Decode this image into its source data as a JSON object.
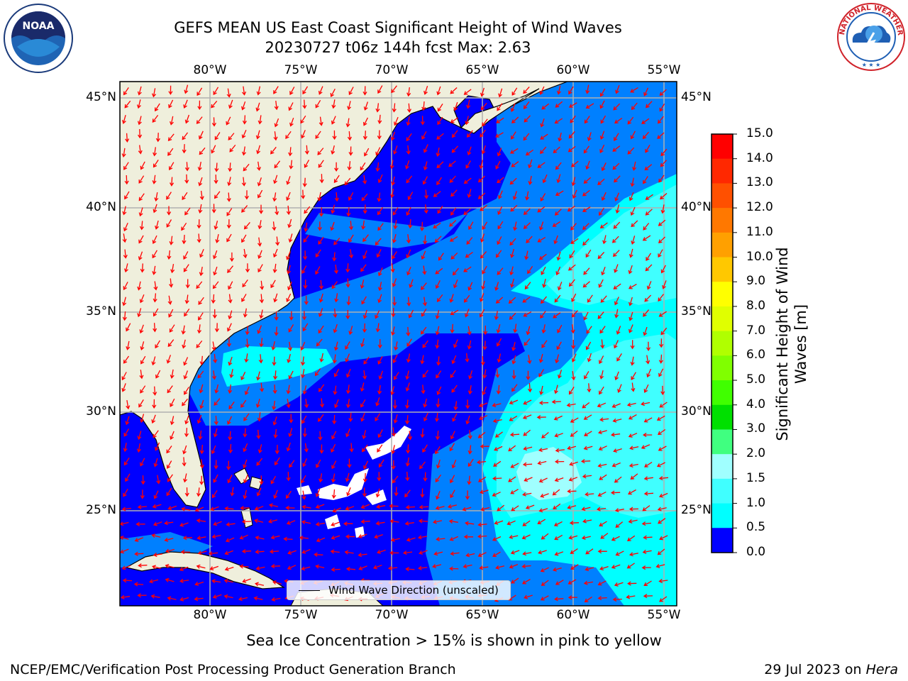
{
  "title": {
    "line1": "GEFS MEAN US East Coast Significant Height of Wind Waves",
    "line2": "20230727 t06z 144h fcst   Max: 2.63"
  },
  "map": {
    "lon_ticks": [
      "80°W",
      "75°W",
      "70°W",
      "65°W",
      "60°W",
      "55°W"
    ],
    "lat_ticks": [
      "45°N",
      "40°N",
      "35°N",
      "30°N",
      "25°N"
    ],
    "legend_label": "Wind Wave Direction (unscaled)",
    "colors": {
      "land": "#efefdc",
      "ocean_0_0.5": "#0000ff",
      "ocean_0.5_1.0": "#0080ff",
      "ocean_1.0_1.5": "#00ffff",
      "ocean_1.5_2.0": "#40ffff",
      "ocean_2.0_3.0": "#a0ffff",
      "arrow": "#ff0000",
      "grid": "#b0b0b0"
    }
  },
  "colorbar": {
    "label": "Significant Height of Wind Waves [m]",
    "ticks": [
      "15.0",
      "14.0",
      "13.0",
      "12.0",
      "11.0",
      "10.0",
      "9.0",
      "8.0",
      "7.0",
      "6.0",
      "5.0",
      "4.0",
      "3.0",
      "2.0",
      "1.5",
      "1.0",
      "0.5",
      "0.0"
    ],
    "colors": [
      "#ff0000",
      "#ff2800",
      "#ff5000",
      "#ff7800",
      "#ffa000",
      "#ffc800",
      "#ffff00",
      "#e0ff00",
      "#b0ff00",
      "#80ff00",
      "#40ff00",
      "#00e000",
      "#40ff80",
      "#a0ffff",
      "#40ffff",
      "#00ffff",
      "#0080ff",
      "#0000ff"
    ]
  },
  "note": "Sea Ice Concentration > 15% is shown in pink to yellow",
  "footer": {
    "left": "NCEP/EMC/Verification Post Processing Product Generation Branch",
    "right_date": "29 Jul 2023 on ",
    "right_host": "Hera"
  },
  "logos": {
    "noaa_text": "NOAA",
    "nws_text": "NATIONAL WEATHER SERVICE"
  }
}
